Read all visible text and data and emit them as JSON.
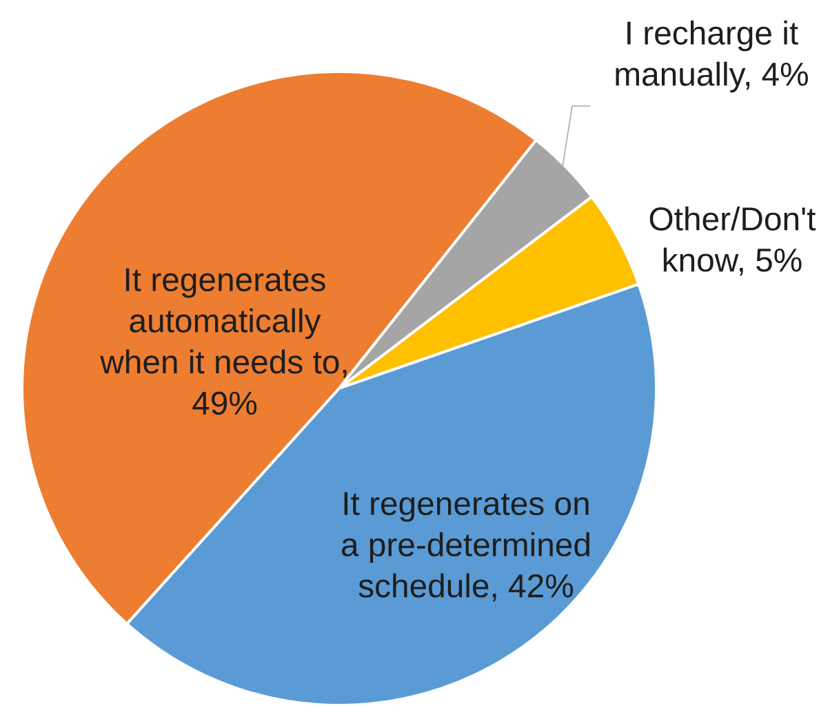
{
  "chart_data": {
    "type": "pie",
    "categories": [
      "It regenerates automatically when it needs to, 49%",
      "I recharge it manually, 4%",
      "Other/Don't know, 5%",
      "It regenerates on a pre-determined schedule, 42%"
    ],
    "values": [
      49,
      4,
      5,
      42
    ],
    "colors": [
      "#ed7d31",
      "#a5a5a5",
      "#ffc000",
      "#5b9bd5"
    ]
  }
}
